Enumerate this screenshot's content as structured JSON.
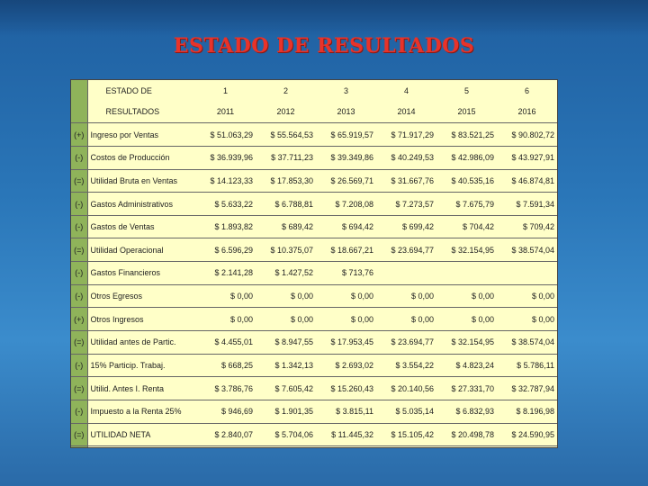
{
  "title": "ESTADO DE RESULTADOS",
  "table": {
    "header_label_1": "ESTADO DE",
    "header_label_2": "RESULTADOS",
    "periods": [
      "1",
      "2",
      "3",
      "4",
      "5",
      "6"
    ],
    "years": [
      "2011",
      "2012",
      "2013",
      "2014",
      "2015",
      "2016"
    ],
    "rows": [
      {
        "sign": "(+)",
        "label": "Ingreso por Ventas",
        "values": [
          "$ 51.063,29",
          "$ 55.564,53",
          "$ 65.919,57",
          "$ 71.917,29",
          "$ 83.521,25",
          "$ 90.802,72"
        ]
      },
      {
        "sign": "(-)",
        "label": "Costos de Producción",
        "values": [
          "$ 36.939,96",
          "$ 37.711,23",
          "$ 39.349,86",
          "$ 40.249,53",
          "$ 42.986,09",
          "$ 43.927,91"
        ]
      },
      {
        "sign": "(=)",
        "label": "Utilidad Bruta en Ventas",
        "values": [
          "$ 14.123,33",
          "$ 17.853,30",
          "$ 26.569,71",
          "$ 31.667,76",
          "$ 40.535,16",
          "$ 46.874,81"
        ]
      },
      {
        "sign": "(-)",
        "label": "Gastos Administrativos",
        "values": [
          "$ 5.633,22",
          "$ 6.788,81",
          "$ 7.208,08",
          "$ 7.273,57",
          "$ 7.675,79",
          "$ 7.591,34"
        ]
      },
      {
        "sign": "(-)",
        "label": "Gastos de Ventas",
        "values": [
          "$ 1.893,82",
          "$ 689,42",
          "$ 694,42",
          "$ 699,42",
          "$ 704,42",
          "$ 709,42"
        ]
      },
      {
        "sign": "(=)",
        "label": "Utilidad Operacional",
        "values": [
          "$ 6.596,29",
          "$ 10.375,07",
          "$ 18.667,21",
          "$ 23.694,77",
          "$ 32.154,95",
          "$ 38.574,04"
        ]
      },
      {
        "sign": "(-)",
        "label": "Gastos Financieros",
        "values": [
          "$ 2.141,28",
          "$ 1.427,52",
          "$ 713,76",
          "",
          "",
          ""
        ]
      },
      {
        "sign": "(-)",
        "label": "Otros Egresos",
        "values": [
          "$ 0,00",
          "$ 0,00",
          "$ 0,00",
          "$ 0,00",
          "$ 0,00",
          "$ 0,00"
        ]
      },
      {
        "sign": "(+)",
        "label": "Otros Ingresos",
        "values": [
          "$ 0,00",
          "$ 0,00",
          "$ 0,00",
          "$ 0,00",
          "$ 0,00",
          "$ 0,00"
        ]
      },
      {
        "sign": "(=)",
        "label": "Utilidad antes de Partic.",
        "values": [
          "$ 4.455,01",
          "$ 8.947,55",
          "$ 17.953,45",
          "$ 23.694,77",
          "$ 32.154,95",
          "$ 38.574,04"
        ]
      },
      {
        "sign": "(-)",
        "label": "15% Particip. Trabaj.",
        "values": [
          "$ 668,25",
          "$ 1.342,13",
          "$ 2.693,02",
          "$ 3.554,22",
          "$ 4.823,24",
          "$ 5.786,11"
        ]
      },
      {
        "sign": "(=)",
        "label": "Utilid. Antes I. Renta",
        "values": [
          "$ 3.786,76",
          "$ 7.605,42",
          "$ 15.260,43",
          "$ 20.140,56",
          "$ 27.331,70",
          "$ 32.787,94"
        ]
      },
      {
        "sign": "(-)",
        "label": "Impuesto a la Renta 25%",
        "values": [
          "$ 946,69",
          "$ 1.901,35",
          "$ 3.815,11",
          "$ 5.035,14",
          "$ 6.832,93",
          "$ 8.196,98"
        ]
      },
      {
        "sign": "(=)",
        "label": "UTILIDAD NETA",
        "values": [
          "$ 2.840,07",
          "$ 5.704,06",
          "$ 11.445,32",
          "$ 15.105,42",
          "$ 20.498,78",
          "$ 24.590,95"
        ]
      }
    ]
  }
}
